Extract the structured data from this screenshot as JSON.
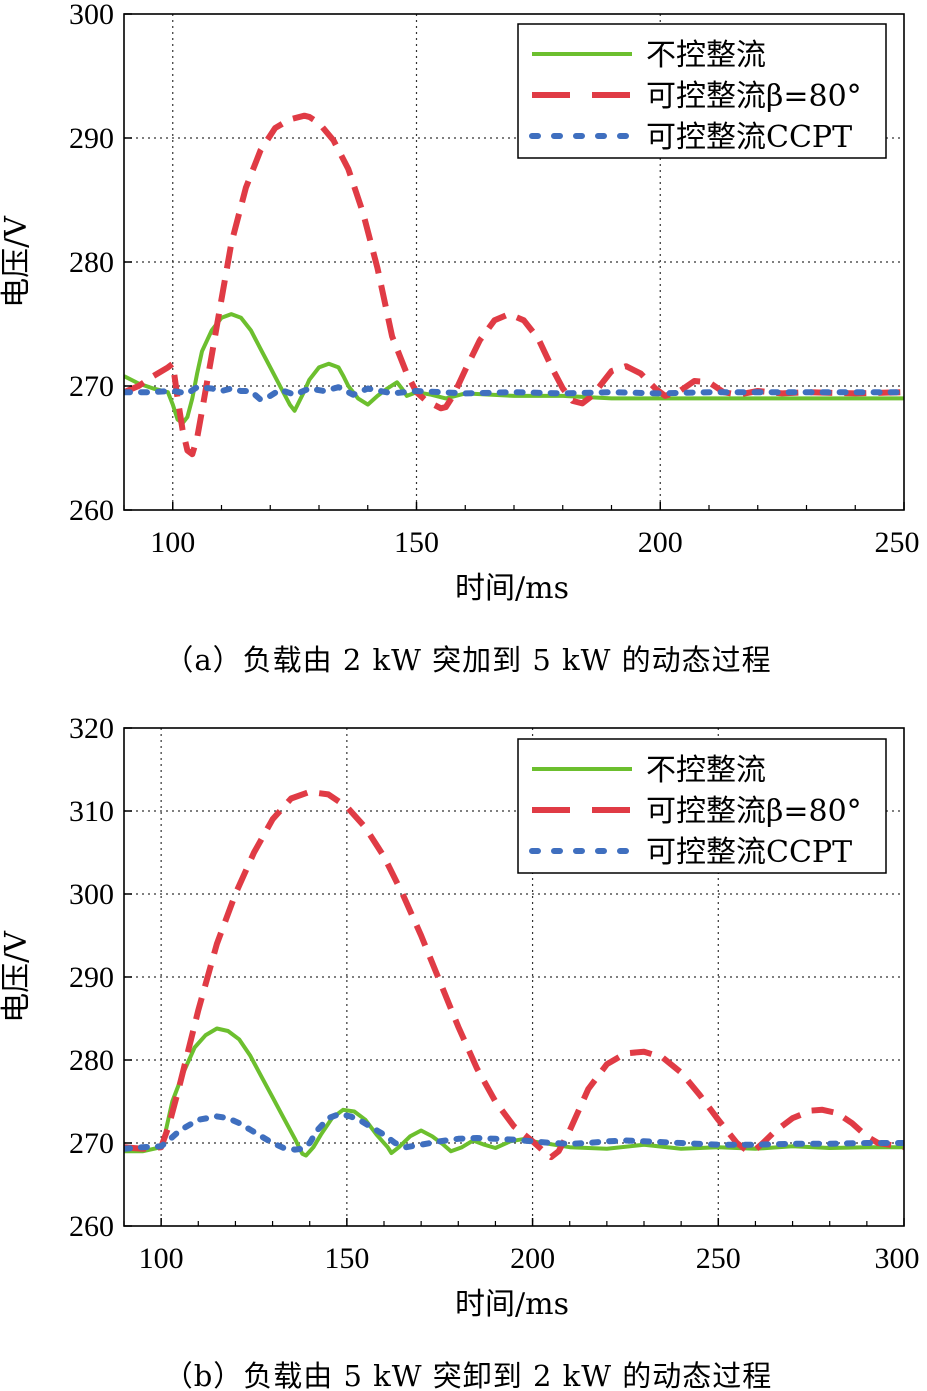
{
  "chart_data": [
    {
      "type": "line",
      "caption": "（a）负载由 2 kW 突加到 5 kW 的动态过程",
      "xlabel": "时间/ms",
      "ylabel": "电压/V",
      "xlim": [
        90,
        250
      ],
      "ylim": [
        260,
        300
      ],
      "xticks": [
        100,
        150,
        200,
        250
      ],
      "yticks": [
        260,
        270,
        280,
        290,
        300
      ],
      "grid": true,
      "legend_position": "top-right",
      "series": [
        {
          "name": "不控整流",
          "color": "#6cbf2e",
          "style": "solid",
          "x": [
            90,
            93,
            96,
            99,
            100,
            101,
            102,
            103,
            104,
            105,
            106,
            108,
            110,
            112,
            114,
            116,
            118,
            120,
            122,
            124,
            125,
            126,
            127,
            128,
            130,
            132,
            134,
            135,
            136,
            138,
            140,
            142,
            144,
            146,
            147,
            148,
            150,
            153,
            156,
            160,
            170,
            180,
            190,
            200,
            210,
            220,
            230,
            240,
            250
          ],
          "y": [
            270.8,
            270.2,
            269.8,
            269.5,
            268.5,
            267.3,
            267.0,
            267.5,
            269.0,
            271.0,
            272.8,
            274.5,
            275.5,
            275.8,
            275.5,
            274.5,
            273.0,
            271.5,
            270.0,
            268.5,
            268.0,
            268.8,
            269.6,
            270.5,
            271.5,
            271.8,
            271.5,
            270.8,
            270.0,
            269.0,
            268.5,
            269.2,
            269.8,
            270.3,
            269.8,
            269.2,
            269.5,
            269.3,
            269.0,
            269.4,
            269.2,
            269.2,
            269.0,
            269.0,
            269.0,
            269.0,
            269.0,
            269.0,
            269.0
          ]
        },
        {
          "name": "可控整流β=80°",
          "color": "#e03b45",
          "style": "dashed",
          "x": [
            90,
            93,
            96,
            99,
            100,
            101,
            102,
            103,
            104,
            105,
            106,
            108,
            110,
            112,
            115,
            118,
            121,
            124,
            127,
            128,
            130,
            133,
            136,
            139,
            142,
            145,
            148,
            150,
            152,
            154,
            155,
            156,
            157,
            158,
            160,
            163,
            166,
            169,
            172,
            175,
            178,
            180,
            182,
            184,
            186,
            188,
            190,
            193,
            196,
            199,
            201,
            204,
            207,
            210,
            213,
            216,
            220,
            225,
            230,
            240,
            250
          ],
          "y": [
            269.5,
            270.0,
            270.8,
            271.5,
            271.8,
            269.0,
            266.5,
            264.8,
            264.5,
            265.8,
            268.0,
            272.5,
            277.0,
            281.5,
            286.0,
            289.0,
            290.8,
            291.5,
            291.8,
            291.7,
            291.2,
            289.8,
            287.5,
            284.0,
            279.5,
            274.0,
            271.0,
            269.5,
            268.8,
            268.4,
            268.2,
            268.3,
            268.9,
            269.6,
            271.3,
            273.7,
            275.3,
            275.8,
            275.3,
            273.8,
            271.3,
            269.8,
            268.8,
            268.6,
            269.2,
            270.2,
            271.2,
            271.6,
            271.0,
            269.8,
            269.2,
            269.6,
            270.4,
            270.3,
            269.5,
            269.3,
            269.6,
            269.4,
            269.5,
            269.4,
            269.5
          ]
        },
        {
          "name": "可控整流CCPT",
          "color": "#3f6fbf",
          "style": "dotted",
          "x": [
            90,
            95,
            100,
            103,
            105,
            108,
            110,
            112,
            114,
            116,
            118,
            120,
            122,
            125,
            128,
            131,
            134,
            137,
            140,
            145,
            150,
            160,
            170,
            180,
            190,
            200,
            210,
            220,
            230,
            240,
            250
          ],
          "y": [
            269.5,
            269.5,
            269.6,
            269.4,
            269.9,
            269.8,
            269.6,
            269.8,
            269.6,
            269.6,
            268.9,
            269.2,
            269.7,
            269.3,
            269.8,
            269.6,
            269.9,
            269.3,
            269.8,
            269.4,
            269.6,
            269.4,
            269.5,
            269.4,
            269.5,
            269.4,
            269.5,
            269.5,
            269.5,
            269.5,
            269.5
          ]
        }
      ]
    },
    {
      "type": "line",
      "caption": "（b）负载由 5 kW 突卸到 2 kW 的动态过程",
      "xlabel": "时间/ms",
      "ylabel": "电压/V",
      "xlim": [
        90,
        300
      ],
      "ylim": [
        260,
        320
      ],
      "xticks": [
        100,
        150,
        200,
        250,
        300
      ],
      "yticks": [
        260,
        270,
        280,
        290,
        300,
        310,
        320
      ],
      "grid": true,
      "legend_position": "top-right",
      "series": [
        {
          "name": "不控整流",
          "color": "#6cbf2e",
          "style": "solid",
          "x": [
            90,
            95,
            100,
            101,
            103,
            106,
            109,
            112,
            115,
            118,
            121,
            124,
            127,
            130,
            133,
            136,
            138,
            139,
            141,
            143,
            146,
            149,
            152,
            155,
            158,
            161,
            162,
            164,
            167,
            170,
            173,
            176,
            178,
            181,
            184,
            187,
            190,
            194,
            198,
            200,
            210,
            220,
            230,
            240,
            250,
            260,
            270,
            280,
            290,
            300
          ],
          "y": [
            269.0,
            269.0,
            269.5,
            271.0,
            275.0,
            278.5,
            281.5,
            283.0,
            283.8,
            283.5,
            282.5,
            280.5,
            278.0,
            275.5,
            273.0,
            270.5,
            268.7,
            268.5,
            269.5,
            271.0,
            273.0,
            274.0,
            273.8,
            272.8,
            271.0,
            269.5,
            268.8,
            269.5,
            270.8,
            271.5,
            270.8,
            269.8,
            269.0,
            269.5,
            270.3,
            269.8,
            269.4,
            270.2,
            270.5,
            270.2,
            269.5,
            269.3,
            269.8,
            269.3,
            269.5,
            269.3,
            269.6,
            269.4,
            269.5,
            269.5
          ]
        },
        {
          "name": "可控整流β=80°",
          "color": "#e03b45",
          "style": "dashed",
          "x": [
            90,
            95,
            100,
            102,
            105,
            110,
            115,
            120,
            125,
            130,
            135,
            140,
            145,
            150,
            155,
            160,
            165,
            170,
            175,
            180,
            185,
            190,
            195,
            200,
            203,
            205,
            207,
            210,
            215,
            220,
            225,
            230,
            235,
            240,
            245,
            250,
            255,
            258,
            260,
            262,
            265,
            270,
            275,
            278,
            282,
            286,
            290,
            293,
            296,
            300
          ],
          "y": [
            269.5,
            269.3,
            269.5,
            272.0,
            277.0,
            286.0,
            294.0,
            300.0,
            305.0,
            309.0,
            311.5,
            312.3,
            312.0,
            310.5,
            308.0,
            304.5,
            300.0,
            295.0,
            289.5,
            284.0,
            279.0,
            275.0,
            272.0,
            270.2,
            269.0,
            268.3,
            269.0,
            271.5,
            276.5,
            279.5,
            280.8,
            281.0,
            280.3,
            278.5,
            275.8,
            272.8,
            270.0,
            269.0,
            269.2,
            270.0,
            271.3,
            273.0,
            273.9,
            274.0,
            273.6,
            272.4,
            270.8,
            270.0,
            269.8,
            269.5
          ]
        },
        {
          "name": "可控整流CCPT",
          "color": "#3f6fbf",
          "style": "dotted",
          "x": [
            90,
            95,
            100,
            102,
            105,
            110,
            115,
            118,
            121,
            124,
            127,
            130,
            133,
            136,
            138,
            140,
            142,
            145,
            148,
            151,
            154,
            157,
            160,
            163,
            166,
            170,
            175,
            180,
            185,
            190,
            195,
            200,
            205,
            210,
            215,
            220,
            225,
            230,
            240,
            250,
            260,
            270,
            280,
            290,
            300
          ],
          "y": [
            269.3,
            269.5,
            269.6,
            270.3,
            271.5,
            272.8,
            273.2,
            273.0,
            272.4,
            271.6,
            270.8,
            270.0,
            269.4,
            269.2,
            269.3,
            270.0,
            271.5,
            273.0,
            273.5,
            273.2,
            272.6,
            271.8,
            271.0,
            270.0,
            269.5,
            269.8,
            270.2,
            270.5,
            270.6,
            270.5,
            270.4,
            270.2,
            270.0,
            269.9,
            270.0,
            270.2,
            270.3,
            270.2,
            270.0,
            269.8,
            269.8,
            269.9,
            269.9,
            270.0,
            270.0
          ]
        }
      ]
    }
  ]
}
